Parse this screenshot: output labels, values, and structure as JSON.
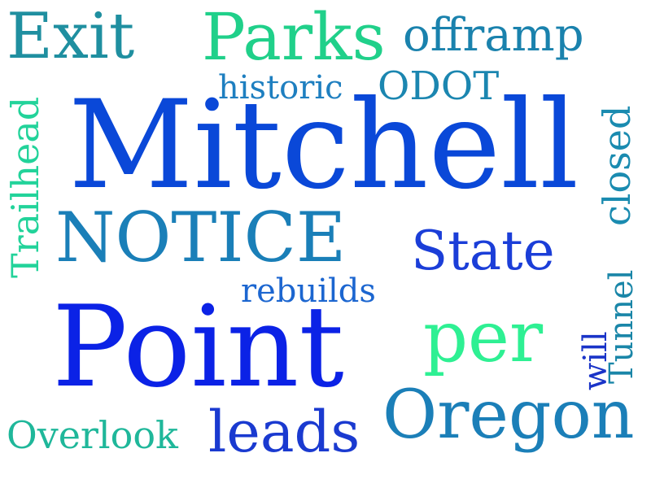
{
  "words": [
    {
      "id": "exit",
      "text": "Exit",
      "color": "#1f8fa0"
    },
    {
      "id": "parks",
      "text": "Parks",
      "color": "#20d08a"
    },
    {
      "id": "offramp",
      "text": "offramp",
      "color": "#1a82ad"
    },
    {
      "id": "historic",
      "text": "historic",
      "color": "#1e7fc0"
    },
    {
      "id": "odot",
      "text": "ODOT",
      "color": "#1b86b0"
    },
    {
      "id": "mitchell",
      "text": "Mitchell",
      "color": "#0a48d8"
    },
    {
      "id": "trailhead",
      "text": "Trailhead",
      "color": "#22d39a"
    },
    {
      "id": "closed",
      "text": "closed",
      "color": "#1a8bb0"
    },
    {
      "id": "notice",
      "text": "NOTICE",
      "color": "#1a7fb8"
    },
    {
      "id": "state",
      "text": "State",
      "color": "#1b3ed8"
    },
    {
      "id": "rebuilds",
      "text": "rebuilds",
      "color": "#1c66d0"
    },
    {
      "id": "tunnel",
      "text": "Tunnel",
      "color": "#1a86a8"
    },
    {
      "id": "will",
      "text": "will",
      "color": "#1a34c8"
    },
    {
      "id": "point",
      "text": "Point",
      "color": "#0b22e6"
    },
    {
      "id": "per",
      "text": "per",
      "color": "#2ef093"
    },
    {
      "id": "oregon",
      "text": "Oregon",
      "color": "#1b7fb8"
    },
    {
      "id": "overlook",
      "text": "Overlook",
      "color": "#1fb79a"
    },
    {
      "id": "leads",
      "text": "leads",
      "color": "#1a3ad0"
    }
  ]
}
